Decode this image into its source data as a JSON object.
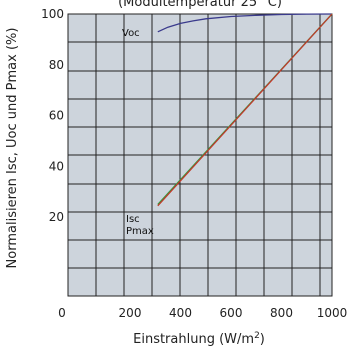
{
  "chart_data": {
    "type": "line",
    "title": "",
    "subtitle": "(Modultemperatur 25 °C)",
    "xlabel": "Einstrahlung  (W/m",
    "xlabel_sup": "2",
    "xlabel_end": ")",
    "ylabel": "Normalisieren Isc, Uoc und Pmax (%)",
    "xlim": [
      0,
      1000
    ],
    "ylim": [
      0,
      100
    ],
    "x_ticks": [
      0,
      200,
      400,
      600,
      800,
      1000
    ],
    "y_ticks": [
      20,
      40,
      60,
      80,
      100
    ],
    "grid": true,
    "series": [
      {
        "name": "Voc",
        "color": "#3a3a8c",
        "x": [
          310,
          350,
          400,
          450,
          500,
          600,
          700,
          800,
          900,
          1000
        ],
        "y": [
          93,
          94.8,
          96.3,
          97.3,
          98.1,
          99.0,
          99.5,
          99.8,
          99.95,
          100
        ]
      },
      {
        "name": "Isc",
        "color": "#2e9e3e",
        "x": [
          310,
          1000
        ],
        "y": [
          25,
          100
        ]
      },
      {
        "name": "Pmax",
        "color": "#c0392b",
        "x": [
          310,
          1000
        ],
        "y": [
          24.5,
          100
        ]
      }
    ],
    "labels": {
      "voc": "Voc",
      "isc": "Isc",
      "pmax": "Pmax"
    }
  }
}
